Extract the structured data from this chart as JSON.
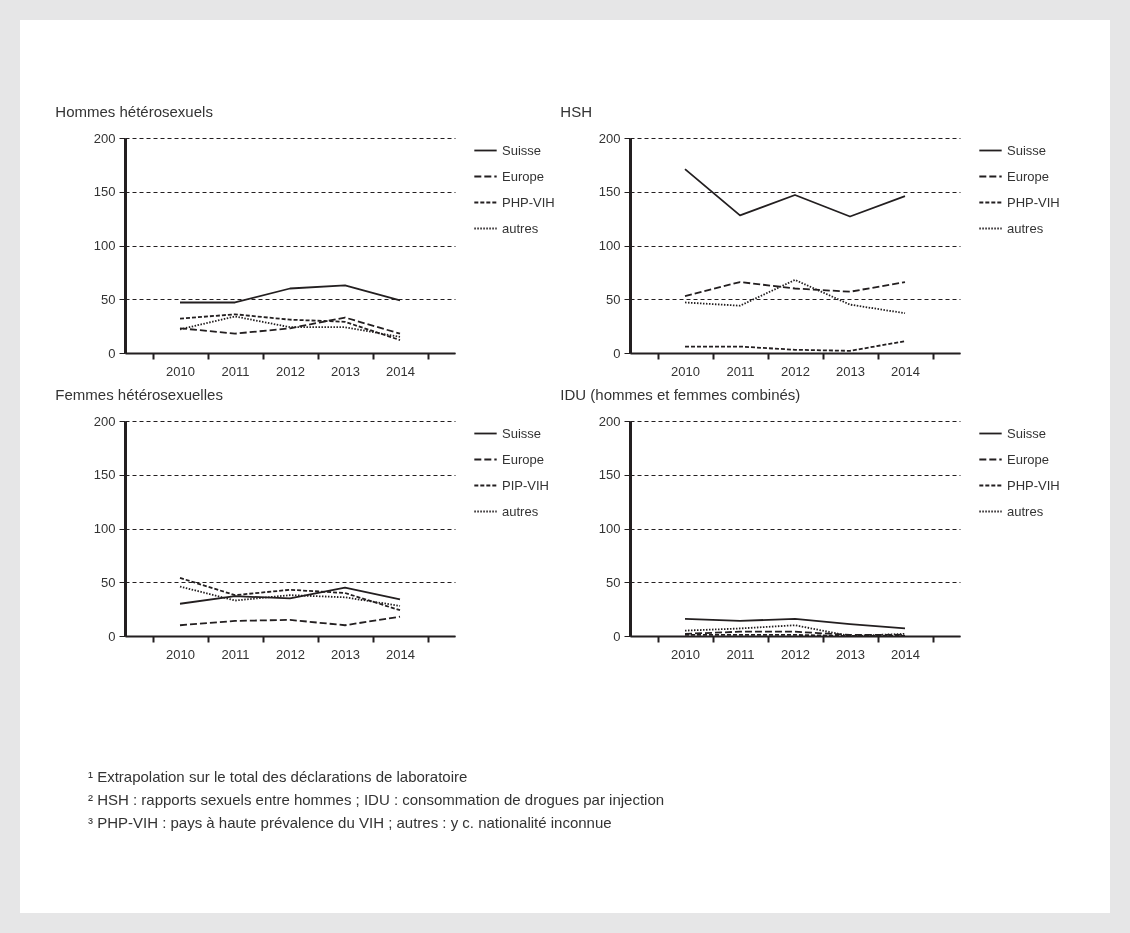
{
  "chart_data": [
    {
      "type": "line",
      "title": "Hommes hétérosexuels",
      "categories": [
        "2010",
        "2011",
        "2012",
        "2013",
        "2014"
      ],
      "ylim": [
        0,
        200
      ],
      "yticks": [
        0,
        50,
        100,
        150,
        200
      ],
      "grid": "y",
      "legend": "right",
      "series": [
        {
          "name": "Suisse",
          "color": "#231f20",
          "line_style": "solid",
          "values": [
            47,
            47,
            60,
            63,
            49
          ]
        },
        {
          "name": "Europe",
          "color": "#231f20",
          "line_style": "dashed",
          "values": [
            23,
            18,
            23,
            33,
            18
          ]
        },
        {
          "name": "PHP-VIH",
          "color": "#231f20",
          "line_style": "dashed",
          "values": [
            32,
            36,
            31,
            29,
            12
          ]
        },
        {
          "name": "autres",
          "color": "#231f20",
          "line_style": "dotted",
          "values": [
            22,
            34,
            24,
            24,
            15
          ]
        }
      ]
    },
    {
      "type": "line",
      "title": "HSH",
      "categories": [
        "2010",
        "2011",
        "2012",
        "2013",
        "2014"
      ],
      "ylim": [
        0,
        200
      ],
      "yticks": [
        0,
        50,
        100,
        150,
        200
      ],
      "grid": "y",
      "legend": "right",
      "series": [
        {
          "name": "Suisse",
          "color": "#231f20",
          "line_style": "solid",
          "values": [
            171,
            128,
            147,
            127,
            146
          ]
        },
        {
          "name": "Europe",
          "color": "#231f20",
          "line_style": "dashed",
          "values": [
            53,
            66,
            60,
            57,
            66
          ]
        },
        {
          "name": "PHP-VIH",
          "color": "#231f20",
          "line_style": "dashed",
          "values": [
            6,
            6,
            3,
            2,
            11
          ]
        },
        {
          "name": "autres",
          "color": "#231f20",
          "line_style": "dotted",
          "values": [
            47,
            44,
            68,
            45,
            37
          ]
        }
      ]
    },
    {
      "type": "line",
      "title": "Femmes hétérosexuelles",
      "categories": [
        "2010",
        "2011",
        "2012",
        "2013",
        "2014"
      ],
      "ylim": [
        0,
        200
      ],
      "yticks": [
        0,
        50,
        100,
        150,
        200
      ],
      "grid": "y",
      "legend": "right",
      "series": [
        {
          "name": "Suisse",
          "color": "#231f20",
          "line_style": "solid",
          "values": [
            30,
            37,
            35,
            45,
            34
          ]
        },
        {
          "name": "Europe",
          "color": "#231f20",
          "line_style": "dashed",
          "values": [
            10,
            14,
            15,
            10,
            18
          ]
        },
        {
          "name": "PIP-VIH",
          "color": "#231f20",
          "line_style": "dashed",
          "values": [
            54,
            38,
            43,
            40,
            24
          ]
        },
        {
          "name": "autres",
          "color": "#231f20",
          "line_style": "dotted",
          "values": [
            46,
            33,
            38,
            36,
            28
          ]
        }
      ]
    },
    {
      "type": "line",
      "title": "IDU (hommes et femmes combinés)",
      "categories": [
        "2010",
        "2011",
        "2012",
        "2013",
        "2014"
      ],
      "ylim": [
        0,
        200
      ],
      "yticks": [
        0,
        50,
        100,
        150,
        200
      ],
      "grid": "y",
      "legend": "right",
      "annotations": [
        "¹ Extrapolation sur le total des déclarations de laboratoire",
        "² HSH : rapports sexuels entre hommes ; IDU : consommation de drogues par injection",
        "³ PHP-VIH : pays à haute prévalence du VIH ; autres : y c. nationalité inconnue"
      ],
      "series": [
        {
          "name": "Suisse",
          "color": "#231f20",
          "line_style": "solid",
          "values": [
            16,
            14,
            16,
            11,
            7
          ]
        },
        {
          "name": "Europe",
          "color": "#231f20",
          "line_style": "dashed",
          "values": [
            2,
            4,
            4,
            1,
            1
          ]
        },
        {
          "name": "PHP-VIH",
          "color": "#231f20",
          "line_style": "dashed",
          "values": [
            1,
            1,
            1,
            0,
            0
          ]
        },
        {
          "name": "autres",
          "color": "#231f20",
          "line_style": "dotted",
          "values": [
            5,
            7,
            10,
            0,
            2
          ]
        }
      ]
    }
  ]
}
